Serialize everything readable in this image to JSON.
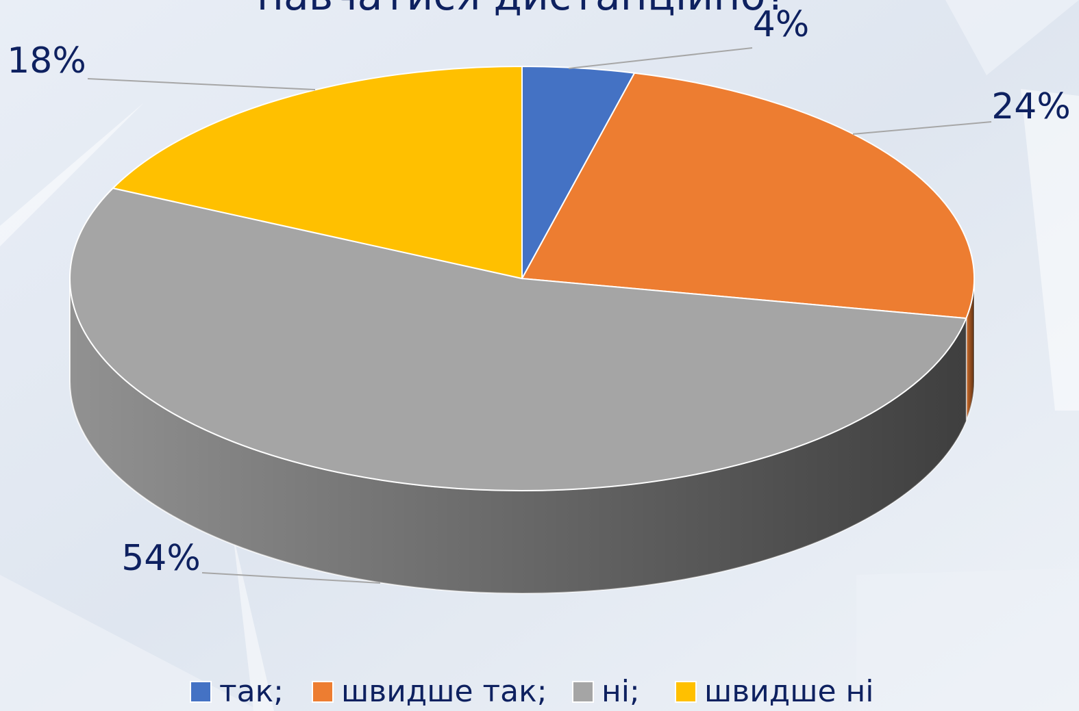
{
  "chart_data": {
    "type": "pie3d",
    "title": "навчатися дистанційно?",
    "categories": [
      "так;",
      "швидше так;",
      "ні;",
      "швидше ні"
    ],
    "values": [
      4,
      24,
      54,
      18
    ],
    "value_labels": [
      "4%",
      "24%",
      "54%",
      "18%"
    ],
    "colors": [
      "#4472c4",
      "#ed7d31",
      "#a5a5a5",
      "#ffc000"
    ],
    "legend": "bottom"
  }
}
